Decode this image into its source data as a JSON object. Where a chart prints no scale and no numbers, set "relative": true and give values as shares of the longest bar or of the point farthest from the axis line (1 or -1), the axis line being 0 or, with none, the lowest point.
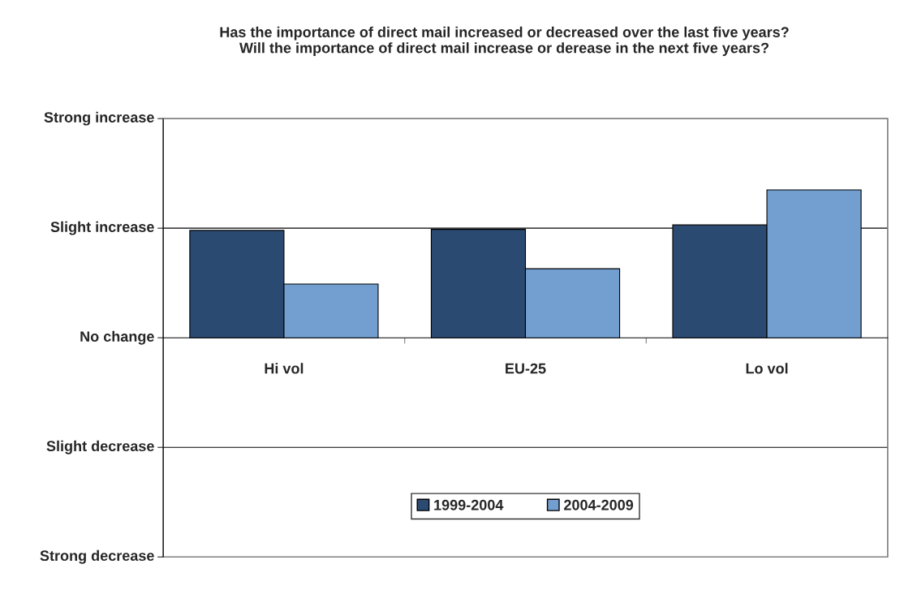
{
  "chart_data": {
    "type": "bar",
    "title": "Has the importance of direct mail increased or decreased over the last five years?\nWill the importance of direct mail increase or derease in the next five years?",
    "categories": [
      "Hi vol",
      "EU-25",
      "Lo vol"
    ],
    "relative": true,
    "series": [
      {
        "name": "1999-2004",
        "color": "#2b4a72",
        "values": [
          0.726,
          0.733,
          0.763
        ]
      },
      {
        "name": "2004-2009",
        "color": "#739fd0",
        "values": [
          0.363,
          0.467,
          1
        ]
      }
    ],
    "ref_lines": [
      {
        "axis": "y",
        "value": 0.741,
        "label": "Slight increase",
        "color": "#000000"
      },
      {
        "axis": "y",
        "value": -0.741,
        "label": "Slight decrease",
        "color": "#000000"
      }
    ],
    "annotations": [
      "Strong increase",
      "No change",
      "Strong decrease"
    ],
    "legend": "bottom"
  }
}
